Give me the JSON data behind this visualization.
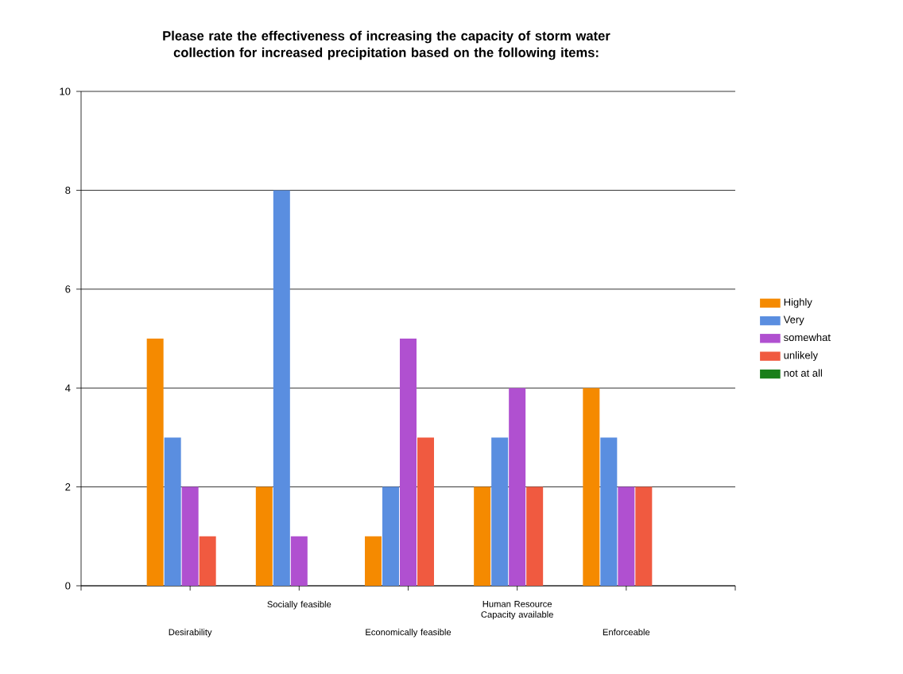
{
  "chart_data": {
    "type": "bar",
    "title": "Please rate the effectiveness of increasing the capacity of storm water collection for increased precipitation based on the following items:",
    "categories": [
      "Desirability",
      "Socially feasible",
      "Economically feasible",
      "Human Resource Capacity available",
      "Enforceable"
    ],
    "series": [
      {
        "name": "Highly",
        "color": "#f58a00",
        "values": [
          5,
          2,
          1,
          2,
          4
        ]
      },
      {
        "name": "Very",
        "color": "#5a8ee0",
        "values": [
          3,
          8,
          2,
          3,
          3
        ]
      },
      {
        "name": "somewhat",
        "color": "#b050d0",
        "values": [
          2,
          1,
          5,
          4,
          2
        ]
      },
      {
        "name": "unlikely",
        "color": "#f05a40",
        "values": [
          1,
          0,
          3,
          2,
          2
        ]
      },
      {
        "name": "not at all",
        "color": "#1a7f1a",
        "values": [
          0,
          0,
          0,
          0,
          0
        ]
      }
    ],
    "ylim": [
      0,
      10
    ],
    "yticks": [
      0,
      2,
      4,
      6,
      8,
      10
    ],
    "grid": "y",
    "legend": "right"
  }
}
